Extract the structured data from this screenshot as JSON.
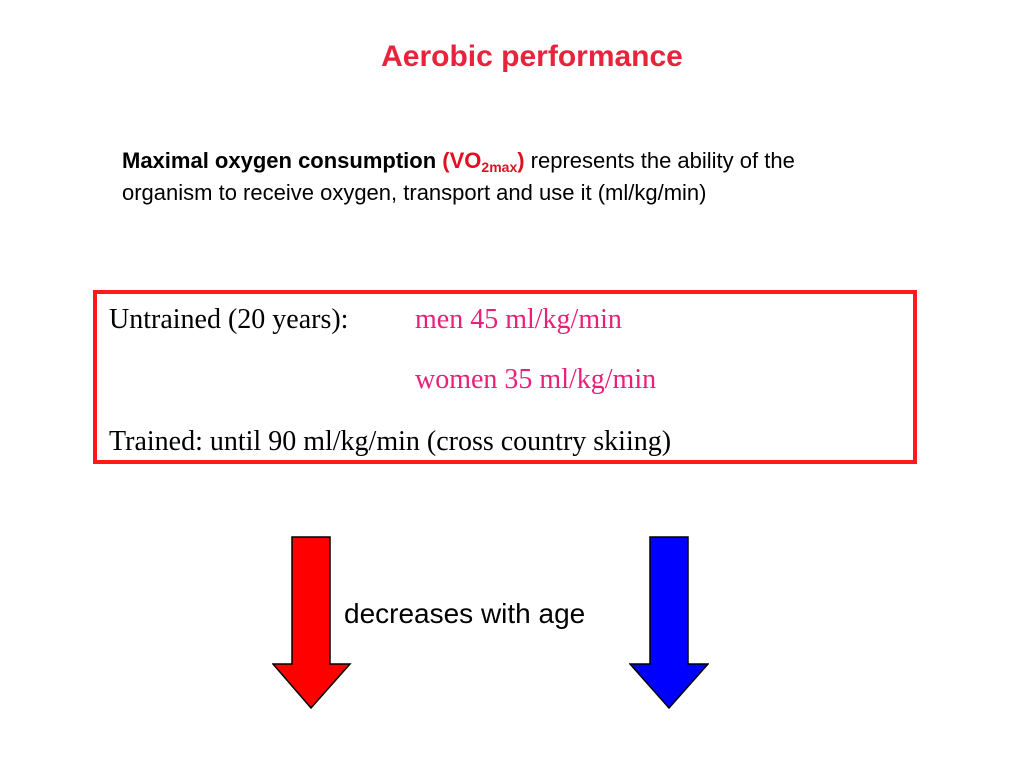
{
  "title": "Aerobic performance",
  "intro": {
    "term": "Maximal oxygen consumption",
    "abbr_main": "(VO",
    "abbr_sub": "2max",
    "abbr_close": ")",
    "rest": " represents the ability of the organism to receive oxygen, transport and use it (ml/kg/min)"
  },
  "values": {
    "untrained_label": "Untrained (20 years):",
    "men": "men 45 ml/kg/min",
    "women": "women 35 ml/kg/min",
    "trained": "Trained: until 90 ml/kg/min (cross country skiing)"
  },
  "caption": "decreases with age",
  "colors": {
    "title": "#e8243d",
    "box_border": "#ff1a1a",
    "highlight": "#e8207a",
    "arrow_left": "#ff0000",
    "arrow_right": "#0000ff"
  }
}
